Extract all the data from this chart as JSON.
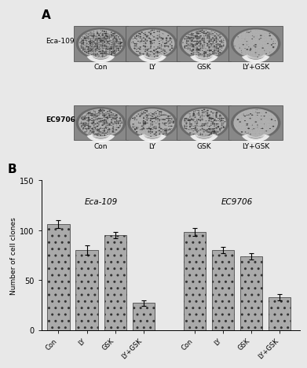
{
  "panel_A_label": "A",
  "panel_B_label": "B",
  "row1_label": "Eca-109",
  "row2_label": "EC9706",
  "col_labels": [
    "Con",
    "LY",
    "GSK",
    "LY+GSK"
  ],
  "group1_label": "Eca-109",
  "group2_label": "EC9706",
  "bar_values": [
    106,
    80,
    95,
    27,
    98,
    80,
    74,
    33
  ],
  "bar_errors": [
    4,
    5,
    3,
    3,
    4,
    3,
    3,
    3
  ],
  "bar_color": "#aaaaaa",
  "ylabel": "Number of cell clones",
  "ylim": [
    0,
    150
  ],
  "yticks": [
    0,
    50,
    100,
    150
  ],
  "xtick_labels": [
    "Con",
    "LY",
    "GSK",
    "LY+GSK",
    "Con",
    "LY",
    "GSK",
    "LY+GSK"
  ],
  "figure_bg": "#e8e8e8",
  "densities_eca": [
    0.85,
    0.45,
    0.65,
    0.08
  ],
  "densities_ec": [
    0.7,
    0.45,
    0.5,
    0.1
  ]
}
